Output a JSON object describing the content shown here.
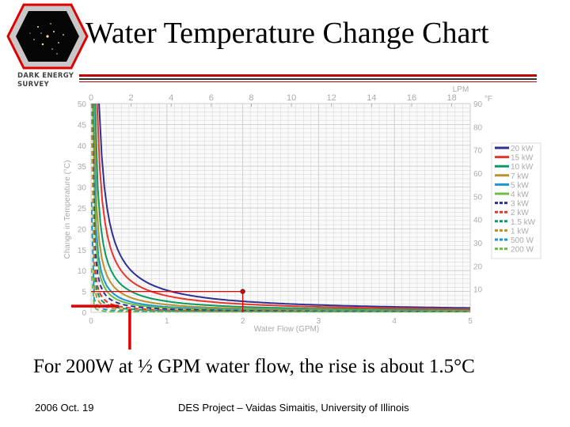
{
  "slide": {
    "title": "Water Temperature Change Chart",
    "logo_text_line1": "DARK ENERGY",
    "logo_text_line2": "SURVEY",
    "caption": "For 200W at ½ GPM water flow, the rise is about 1.5°C",
    "footer_date": "2006 Oct. 19",
    "footer_credit": "DES Project – Vaidas Simaitis,  University of Illinois"
  },
  "colors": {
    "accent_red": "#e00000",
    "rule_red": "#c00000",
    "grid": "#cccccc",
    "axis_text": "#aaaaaa"
  },
  "chart_data": {
    "type": "line",
    "title": "",
    "xlabel": "Water Flow (GPM)",
    "ylabel": "Change in Temperature (°C)",
    "x_top_unit": "LPM",
    "y_right_unit": "°F",
    "xlim": [
      0,
      5
    ],
    "ylim": [
      0,
      50
    ],
    "x_ticks": [
      "0",
      "1",
      "2",
      "3",
      "4",
      "5"
    ],
    "y_ticks": [
      "0",
      "5",
      "10",
      "15",
      "20",
      "25",
      "30",
      "35",
      "40",
      "45",
      "50"
    ],
    "x_top_ticks": [
      "0",
      "2",
      "4",
      "6",
      "8",
      "10",
      "12",
      "14",
      "16",
      "18"
    ],
    "y_right_ticks": [
      "10",
      "20",
      "30",
      "40",
      "50",
      "60",
      "70",
      "80",
      "90"
    ],
    "grid": true,
    "legend_position": "right",
    "series": [
      {
        "name": "20 kW",
        "kw": 20,
        "color": "#2e3192",
        "dash": false
      },
      {
        "name": "15 kW",
        "kw": 15,
        "color": "#e8352c",
        "dash": false
      },
      {
        "name": "10 kW",
        "kw": 10,
        "color": "#0a9b63",
        "dash": false
      },
      {
        "name": "7 kW",
        "kw": 7,
        "color": "#b8922b",
        "dash": false
      },
      {
        "name": "5 kW",
        "kw": 5,
        "color": "#1a96d4",
        "dash": false
      },
      {
        "name": "4 kW",
        "kw": 4,
        "color": "#6cbf44",
        "dash": false
      },
      {
        "name": "3 kW",
        "kw": 3,
        "color": "#2e3192",
        "dash": true
      },
      {
        "name": "2 kW",
        "kw": 2,
        "color": "#e8352c",
        "dash": true
      },
      {
        "name": "1.5 kW",
        "kw": 1.5,
        "color": "#0a9b63",
        "dash": true
      },
      {
        "name": "1 kW",
        "kw": 1,
        "color": "#b8922b",
        "dash": true
      },
      {
        "name": "500 W",
        "kw": 0.5,
        "color": "#1a96d4",
        "dash": true
      },
      {
        "name": "200 W",
        "kw": 0.2,
        "color": "#6cbf44",
        "dash": true
      }
    ],
    "annotations": {
      "reference_point": {
        "x": 2.0,
        "y": 5.0
      },
      "caption_marker": {
        "x": 0.5,
        "y": 1.5
      }
    }
  }
}
